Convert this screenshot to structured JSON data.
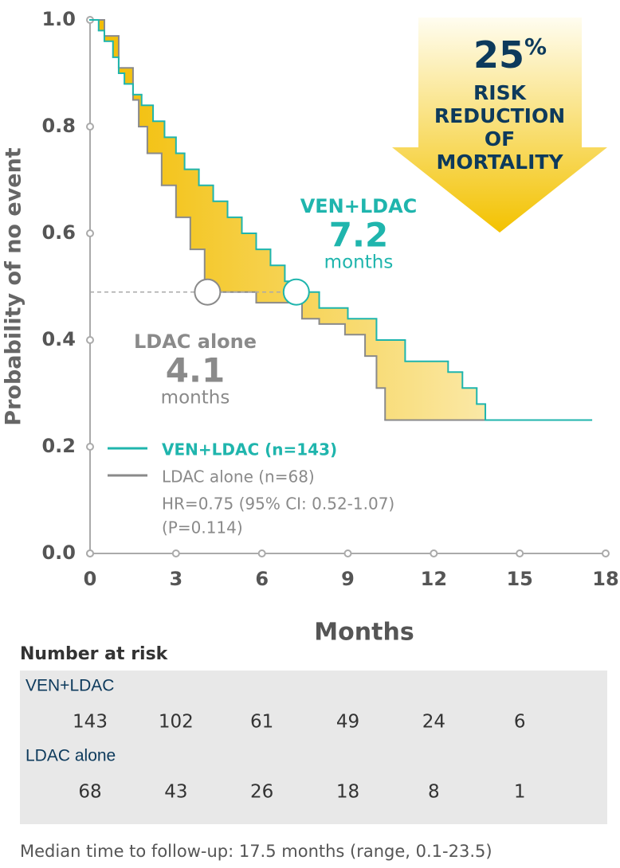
{
  "chart_data": {
    "type": "step",
    "y_label": "Probability of no event",
    "x_label": "Months",
    "xlim": [
      0,
      18
    ],
    "ylim": [
      0,
      1
    ],
    "xticks": [
      0,
      3,
      6,
      9,
      12,
      15,
      18
    ],
    "yticks": [
      {
        "value": 0,
        "label": "0.0"
      },
      {
        "value": 0.2,
        "label": "0.2"
      },
      {
        "value": 0.4,
        "label": "0.4"
      },
      {
        "value": 0.6,
        "label": "0.6"
      },
      {
        "value": 0.8,
        "label": "0.8"
      },
      {
        "value": 1,
        "label": "1.0"
      }
    ],
    "series": [
      {
        "name": "VEN+LDAC (n=143)",
        "color": "#1fb5ad",
        "x": [
          0,
          0.3,
          0.5,
          0.8,
          1.0,
          1.2,
          1.5,
          1.8,
          2.2,
          2.6,
          3.0,
          3.3,
          3.8,
          4.3,
          4.8,
          5.3,
          5.8,
          6.3,
          6.8,
          7.2,
          8.0,
          9.0,
          10.0,
          11.0,
          12.5,
          13.0,
          13.5,
          13.8,
          17.5
        ],
        "y": [
          1.0,
          0.98,
          0.96,
          0.93,
          0.9,
          0.88,
          0.86,
          0.84,
          0.81,
          0.78,
          0.75,
          0.72,
          0.69,
          0.66,
          0.63,
          0.6,
          0.57,
          0.54,
          0.51,
          0.49,
          0.46,
          0.44,
          0.4,
          0.36,
          0.34,
          0.31,
          0.28,
          0.25,
          0.25
        ]
      },
      {
        "name": "LDAC alone (n=68)",
        "color": "#8a8a8a",
        "x": [
          0,
          0.5,
          1.0,
          1.5,
          1.7,
          2.0,
          2.5,
          3.0,
          3.5,
          4.0,
          4.3,
          5.8,
          7.4,
          8.0,
          8.9,
          9.6,
          10.0,
          10.3,
          17.5
        ],
        "y": [
          1.0,
          0.97,
          0.91,
          0.85,
          0.8,
          0.75,
          0.69,
          0.63,
          0.57,
          0.51,
          0.49,
          0.47,
          0.44,
          0.43,
          0.41,
          0.37,
          0.31,
          0.25,
          0.25
        ]
      }
    ],
    "legend_notes": [
      "HR=0.75 (95% CI: 0.52-1.07)",
      "(P=0.114)"
    ],
    "annotations": [
      {
        "label": "VEN+LDAC",
        "median": 7.2,
        "unit": "months",
        "y": 0.49,
        "color": "#1fb5ad"
      },
      {
        "label": "LDAC alone",
        "median": 4.1,
        "unit": "months",
        "y": 0.49,
        "color": "#8a8a8a"
      }
    ],
    "callout": {
      "headline": "25",
      "headline_unit": "%",
      "lines": [
        "RISK",
        "REDUCTION",
        "OF",
        "MORTALITY"
      ]
    }
  },
  "risk_table": {
    "title": "Number at risk",
    "rows": [
      {
        "label": "VEN+LDAC",
        "values": [
          143,
          102,
          61,
          49,
          24,
          6
        ]
      },
      {
        "label": "LDAC alone",
        "values": [
          68,
          43,
          26,
          18,
          8,
          1
        ]
      }
    ]
  },
  "footer": "Median time to follow-up: 17.5 months (range, 0.1-23.5)"
}
